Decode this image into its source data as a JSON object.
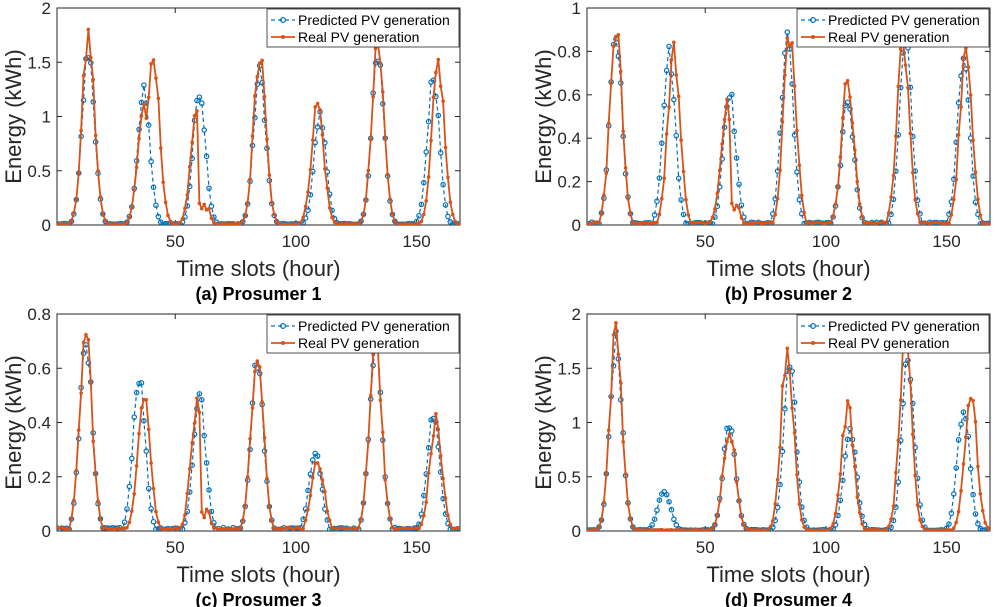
{
  "figure": {
    "x_label": "Time slots (hour)",
    "y_label": "Energy (kWh)",
    "series_names": [
      "Predicted PV generation",
      "Real PV generation"
    ],
    "colors": {
      "predicted": "#0072BD",
      "real": "#D95319",
      "axis": "#262626"
    }
  },
  "chart_data": [
    {
      "type": "line",
      "title": "(a) Prosumer 1",
      "xlabel": "Time slots (hour)",
      "ylabel": "Energy (kWh)",
      "xlim": [
        1,
        168
      ],
      "ylim": [
        0,
        2
      ],
      "xticks": [
        50,
        100,
        150
      ],
      "yticks": [
        0,
        0.5,
        1,
        1.5,
        2
      ],
      "ytick_labels": [
        "0",
        "0.5",
        "1",
        "1.5",
        "2"
      ],
      "legend": "top-right",
      "series": [
        {
          "name": "Predicted PV generation",
          "peaks": [
            [
              14,
              1.6
            ],
            [
              37,
              1.22
            ],
            [
              60,
              1.25
            ],
            [
              85,
              1.4
            ],
            [
              110,
              1.0
            ],
            [
              134,
              1.58
            ],
            [
              157,
              1.36
            ]
          ]
        },
        {
          "name": "Real PV generation",
          "peaks": [
            [
              14,
              1.73
            ],
            [
              37,
              1.1
            ],
            [
              41,
              1.49
            ],
            [
              59,
              1.0
            ],
            [
              85,
              1.54
            ],
            [
              109,
              1.12
            ],
            [
              134,
              1.62
            ],
            [
              159,
              1.48
            ]
          ]
        }
      ]
    },
    {
      "type": "line",
      "title": "(b) Prosumer 2",
      "xlabel": "Time slots (hour)",
      "ylabel": "Energy (kWh)",
      "xlim": [
        1,
        168
      ],
      "ylim": [
        0,
        1
      ],
      "xticks": [
        50,
        100,
        150
      ],
      "yticks": [
        0,
        0.2,
        0.4,
        0.6,
        0.8,
        1
      ],
      "ytick_labels": [
        "0",
        "0.2",
        "0.4",
        "0.6",
        "0.8",
        "1"
      ],
      "legend": "top-right",
      "series": [
        {
          "name": "Predicted PV generation",
          "peaks": [
            [
              13,
              0.87
            ],
            [
              35,
              0.79
            ],
            [
              60,
              0.62
            ],
            [
              84,
              0.85
            ],
            [
              109,
              0.58
            ],
            [
              133,
              0.84
            ],
            [
              157,
              0.78
            ]
          ]
        },
        {
          "name": "Real PV generation",
          "peaks": [
            [
              13,
              0.9
            ],
            [
              37,
              0.8
            ],
            [
              59,
              0.54
            ],
            [
              85,
              0.88
            ],
            [
              109,
              0.65
            ],
            [
              132,
              0.86
            ],
            [
              158,
              0.78
            ]
          ]
        }
      ]
    },
    {
      "type": "line",
      "title": "(c) Prosumer 3",
      "xlabel": "Time slots (hour)",
      "ylabel": "Energy (kWh)",
      "xlim": [
        1,
        168
      ],
      "ylim": [
        0,
        0.8
      ],
      "xticks": [
        50,
        100,
        150
      ],
      "yticks": [
        0,
        0.2,
        0.4,
        0.6,
        0.8
      ],
      "ytick_labels": [
        "0",
        "0.2",
        "0.4",
        "0.6",
        "0.8"
      ],
      "legend": "top-right",
      "series": [
        {
          "name": "Predicted PV generation",
          "peaks": [
            [
              13,
              0.71
            ],
            [
              35,
              0.57
            ],
            [
              60,
              0.5
            ],
            [
              84,
              0.63
            ],
            [
              108,
              0.3
            ],
            [
              133,
              0.7
            ],
            [
              157,
              0.43
            ]
          ]
        },
        {
          "name": "Real PV generation",
          "peaks": [
            [
              13,
              0.73
            ],
            [
              37,
              0.52
            ],
            [
              59,
              0.45
            ],
            [
              84,
              0.64
            ],
            [
              109,
              0.27
            ],
            [
              133,
              0.72
            ],
            [
              158,
              0.4
            ]
          ]
        }
      ]
    },
    {
      "type": "line",
      "title": "(d) Prosumer 4",
      "xlabel": "Time slots (hour)",
      "ylabel": "Energy (kWh)",
      "xlim": [
        1,
        168
      ],
      "ylim": [
        0,
        2
      ],
      "xticks": [
        50,
        100,
        150
      ],
      "yticks": [
        0,
        0.5,
        1,
        1.5,
        2
      ],
      "ytick_labels": [
        "0",
        "0.5",
        "1",
        "1.5",
        "2"
      ],
      "legend": "top-right",
      "series": [
        {
          "name": "Predicted PV generation",
          "peaks": [
            [
              13,
              1.75
            ],
            [
              33,
              0.38
            ],
            [
              60,
              1.0
            ],
            [
              85,
              1.55
            ],
            [
              110,
              0.95
            ],
            [
              134,
              1.6
            ],
            [
              157,
              1.13
            ]
          ]
        },
        {
          "name": "Real PV generation",
          "peaks": [
            [
              13,
              1.82
            ],
            [
              60,
              0.97
            ],
            [
              84,
              1.69
            ],
            [
              109,
              1.13
            ],
            [
              133,
              1.72
            ],
            [
              160,
              1.27
            ]
          ]
        }
      ]
    }
  ]
}
